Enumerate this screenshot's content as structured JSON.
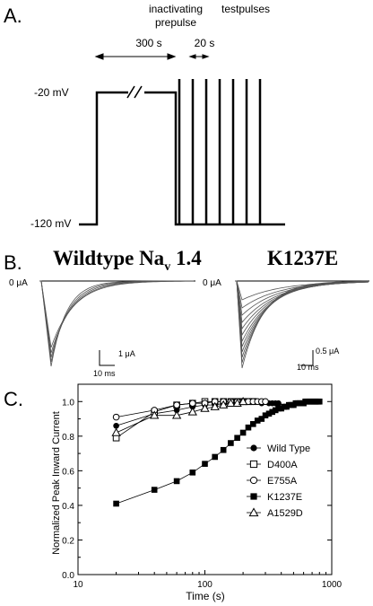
{
  "panel_a": {
    "label": "A.",
    "prepulse_label_line1": "inactivating",
    "prepulse_label_line2": "prepulse",
    "prepulse_duration": "300 s",
    "testpulses_label": "testpulses",
    "testpulse_interval": "20 s",
    "v_hold_label": "-20 mV",
    "v_rest_label": "-120 mV",
    "testpulse_count": 7
  },
  "panel_b": {
    "label": "B.",
    "left_title_main": "Wildtype Na",
    "left_title_sub": "v",
    "left_title_tail": " 1.4",
    "right_title": "K1237E",
    "zero_label_left": "0 μA",
    "zero_label_right": "0 μA",
    "left_scale_current": "1 μA",
    "left_scale_time": "10 ms",
    "right_scale_current": "0.5 μA",
    "right_scale_time": "10 ms"
  },
  "panel_c": {
    "label": "C."
  },
  "chart_data": {
    "type": "scatter",
    "xlabel": "Time (s)",
    "ylabel": "Normalized Peak Inward Current",
    "x_scale": "log",
    "xlim": [
      10,
      1000
    ],
    "ylim": [
      0.0,
      1.1
    ],
    "x_ticks": [
      "10",
      "100",
      "1000"
    ],
    "y_ticks": [
      "0.0",
      "0.2",
      "0.4",
      "0.6",
      "0.8",
      "1.0"
    ],
    "legend_position": "right",
    "series": [
      {
        "name": "Wild Type",
        "marker": "circle-filled",
        "x": [
          20,
          40,
          60,
          80,
          100,
          120,
          140,
          160,
          180,
          200,
          220,
          240,
          260,
          280,
          300,
          320,
          340,
          360,
          380
        ],
        "y": [
          0.86,
          0.93,
          0.95,
          0.97,
          0.98,
          0.98,
          0.99,
          0.99,
          0.99,
          1.0,
          1.0,
          1.0,
          1.0,
          0.99,
          1.0,
          0.99,
          0.99,
          0.99,
          0.99
        ]
      },
      {
        "name": "D400A",
        "marker": "square-open",
        "x": [
          20,
          40,
          60,
          80,
          100,
          120,
          140,
          160,
          180,
          200,
          220,
          240
        ],
        "y": [
          0.79,
          0.94,
          0.98,
          0.99,
          1.0,
          1.0,
          1.0,
          1.0,
          1.0,
          1.0,
          1.0,
          1.0
        ]
      },
      {
        "name": "E755A",
        "marker": "circle-open",
        "x": [
          20,
          40,
          60,
          80,
          100,
          120,
          140,
          160,
          180,
          200,
          220,
          240,
          260,
          280,
          300
        ],
        "y": [
          0.91,
          0.95,
          0.98,
          0.99,
          0.99,
          1.0,
          1.0,
          1.0,
          1.0,
          1.0,
          1.0,
          1.0,
          1.0,
          1.0,
          1.0
        ]
      },
      {
        "name": "K1237E",
        "marker": "square-filled",
        "x": [
          20,
          40,
          60,
          80,
          100,
          120,
          140,
          160,
          180,
          200,
          220,
          240,
          260,
          280,
          300,
          320,
          340,
          360,
          380,
          400,
          420,
          440,
          460,
          480,
          500,
          520,
          540,
          560,
          580,
          600,
          620,
          640,
          660,
          680,
          700,
          720,
          740,
          760,
          780,
          800
        ],
        "y": [
          0.41,
          0.49,
          0.54,
          0.59,
          0.64,
          0.68,
          0.72,
          0.76,
          0.79,
          0.82,
          0.85,
          0.87,
          0.89,
          0.9,
          0.92,
          0.93,
          0.94,
          0.95,
          0.96,
          0.96,
          0.97,
          0.97,
          0.98,
          0.98,
          0.98,
          0.99,
          0.99,
          0.99,
          0.99,
          0.99,
          1.0,
          1.0,
          1.0,
          1.0,
          1.0,
          1.0,
          1.0,
          1.0,
          1.0,
          1.0
        ]
      },
      {
        "name": "A1529D",
        "marker": "triangle-open",
        "x": [
          20,
          40,
          60,
          80,
          100,
          120,
          140,
          160,
          180,
          200
        ],
        "y": [
          0.82,
          0.92,
          0.92,
          0.94,
          0.96,
          0.97,
          0.98,
          0.99,
          0.99,
          1.0
        ]
      }
    ]
  }
}
